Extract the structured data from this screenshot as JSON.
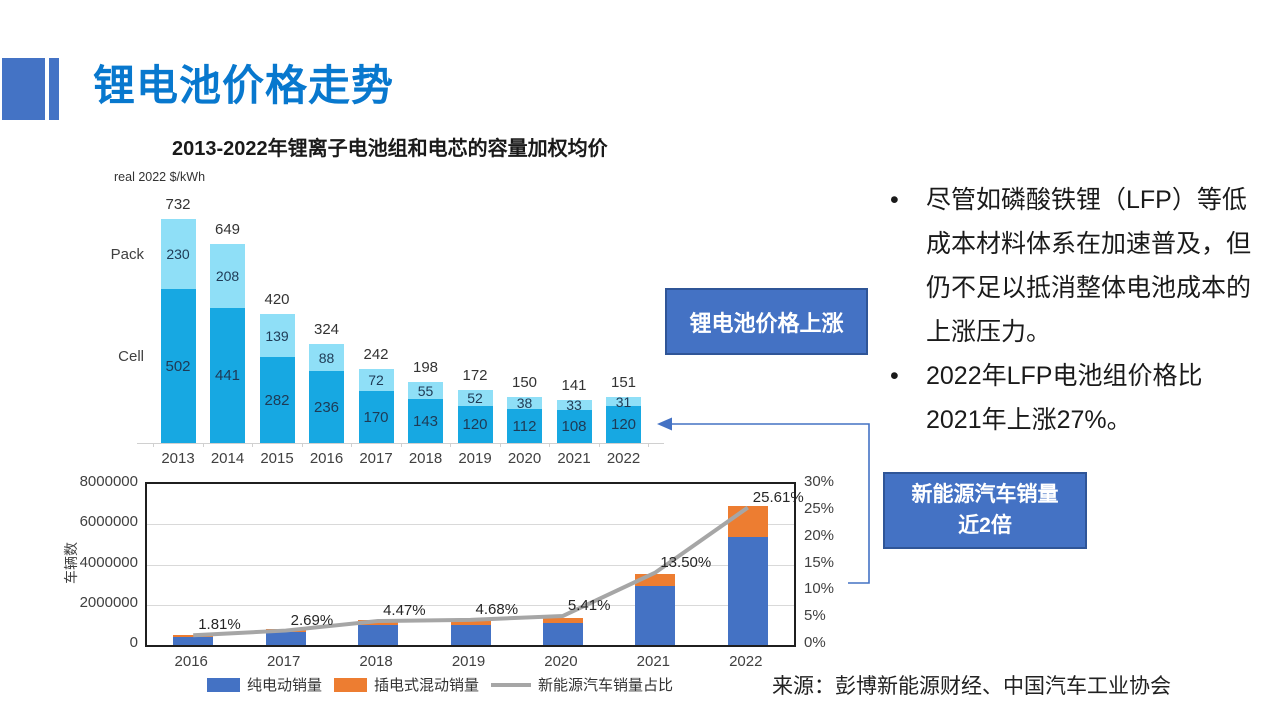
{
  "slide": {
    "title": "锂电池价格走势",
    "bullet_marker": "•",
    "bullets": [
      "尽管如磷酸铁锂（LFP）等低成本材料体系在加速普及，但仍不足以抵消整体电池成本的上涨压力。",
      "2022年LFP电池组价格比2021年上涨27%。"
    ],
    "callouts": {
      "battery_price": "锂电池价格上涨",
      "nev_line1": "新能源汽车销量",
      "nev_line2": "近2倍"
    },
    "source": "来源：彭博新能源财经、中国汽车工业协会",
    "accent_color": "#4473C5",
    "title_color": "#0878CE"
  },
  "chart_data": [
    {
      "type": "bar",
      "stacked": true,
      "title": "2013-2022年锂离子电池组和电芯的容量加权均价",
      "unit_label": "real 2022 $/kWh",
      "categories": [
        "2013",
        "2014",
        "2015",
        "2016",
        "2017",
        "2018",
        "2019",
        "2020",
        "2021",
        "2022"
      ],
      "series": [
        {
          "name": "Cell",
          "color": "#17A8E2",
          "values": [
            502,
            441,
            282,
            236,
            170,
            143,
            120,
            112,
            108,
            120
          ]
        },
        {
          "name": "Pack",
          "color": "#8FDFF7",
          "values": [
            230,
            208,
            139,
            88,
            72,
            55,
            52,
            38,
            33,
            31
          ]
        }
      ],
      "totals": [
        732,
        649,
        420,
        324,
        242,
        198,
        172,
        150,
        141,
        151
      ],
      "ylim": [
        0,
        800
      ],
      "grid": false,
      "legend_position": "category-labels-left"
    },
    {
      "type": "bar+line",
      "stacked": true,
      "categories": [
        "2016",
        "2017",
        "2018",
        "2019",
        "2020",
        "2021",
        "2022"
      ],
      "series": [
        {
          "name": "纯电动销量",
          "color": "#4472C4",
          "values": [
            409000,
            652000,
            984000,
            972000,
            1115000,
            2916000,
            5365000
          ]
        },
        {
          "name": "插电式混动销量",
          "color": "#ED7D31",
          "values": [
            98000,
            125000,
            271000,
            232000,
            251000,
            603000,
            1518000
          ]
        }
      ],
      "line": {
        "name": "新能源汽车销量占比",
        "color": "#A6A6A6",
        "values": [
          1.81,
          2.69,
          4.47,
          4.68,
          5.41,
          13.5,
          25.61
        ],
        "labels": [
          "1.81%",
          "2.69%",
          "4.47%",
          "4.68%",
          "5.41%",
          "13.50%",
          "25.61%"
        ]
      },
      "ylabel": "车辆数",
      "axis_left": {
        "min": 0,
        "max": 8000000,
        "ticks": [
          "0",
          "2000000",
          "4000000",
          "6000000",
          "8000000"
        ]
      },
      "axis_right": {
        "min": 0,
        "max": 30,
        "ticks": [
          "0%",
          "5%",
          "10%",
          "15%",
          "20%",
          "25%",
          "30%"
        ]
      },
      "grid": true,
      "legend_position": "bottom"
    }
  ]
}
